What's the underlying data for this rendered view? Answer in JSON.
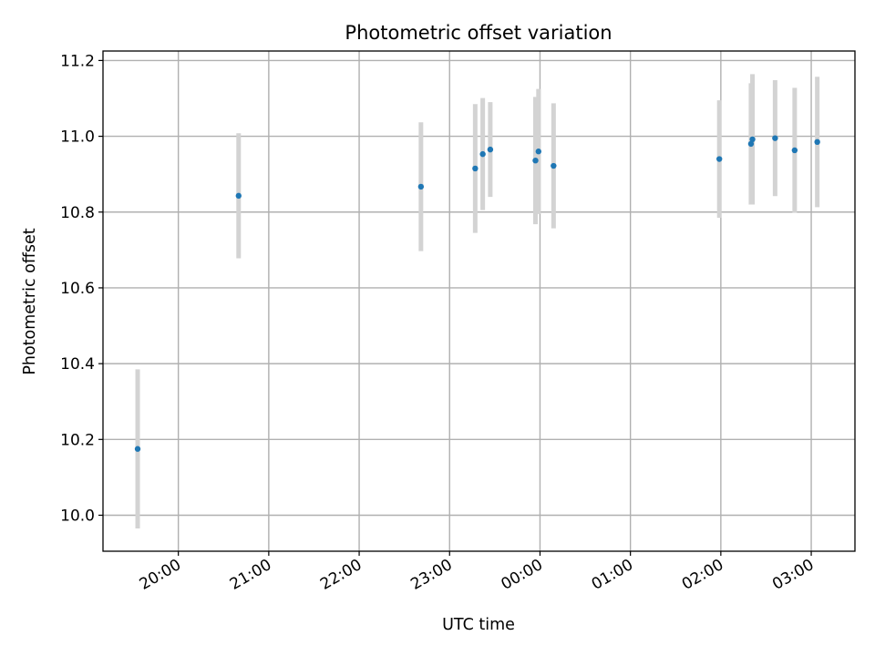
{
  "chart_data": {
    "type": "scatter",
    "title": "Photometric offset variation",
    "xlabel": "UTC time",
    "ylabel": "Photometric offset",
    "x_axis": {
      "kind": "time",
      "range": [
        "19:10",
        "03:29"
      ],
      "ticks": [
        "20:00",
        "21:00",
        "22:00",
        "23:00",
        "00:00",
        "01:00",
        "02:00",
        "03:00"
      ]
    },
    "y_axis": {
      "range": [
        9.905,
        11.225
      ],
      "ticks": [
        10.0,
        10.2,
        10.4,
        10.6,
        10.8,
        11.0,
        11.2
      ],
      "tick_labels": [
        "10.0",
        "10.2",
        "10.4",
        "10.6",
        "10.8",
        "11.0",
        "11.2"
      ]
    },
    "grid": true,
    "tick_label_rotation_deg": 30,
    "colors": {
      "point": "#1f77b4",
      "errorbar": "#d3d3d3"
    },
    "points": [
      {
        "time": "19:33",
        "y": 10.175,
        "yerr": 0.21
      },
      {
        "time": "20:40",
        "y": 10.843,
        "yerr": 0.165
      },
      {
        "time": "22:41",
        "y": 10.867,
        "yerr": 0.17
      },
      {
        "time": "23:17",
        "y": 10.915,
        "yerr": 0.17
      },
      {
        "time": "23:22",
        "y": 10.953,
        "yerr": 0.148
      },
      {
        "time": "23:27",
        "y": 10.965,
        "yerr": 0.125
      },
      {
        "time": "23:57",
        "y": 10.936,
        "yerr": 0.168
      },
      {
        "time": "23:59",
        "y": 10.96,
        "yerr": 0.165
      },
      {
        "time": "00:09",
        "y": 10.922,
        "yerr": 0.165
      },
      {
        "time": "01:59",
        "y": 10.94,
        "yerr": 0.155
      },
      {
        "time": "02:20",
        "y": 10.98,
        "yerr": 0.16
      },
      {
        "time": "02:21",
        "y": 10.992,
        "yerr": 0.172
      },
      {
        "time": "02:36",
        "y": 10.995,
        "yerr": 0.153
      },
      {
        "time": "02:49",
        "y": 10.963,
        "yerr": 0.165
      },
      {
        "time": "03:04",
        "y": 10.985,
        "yerr": 0.172
      }
    ]
  }
}
